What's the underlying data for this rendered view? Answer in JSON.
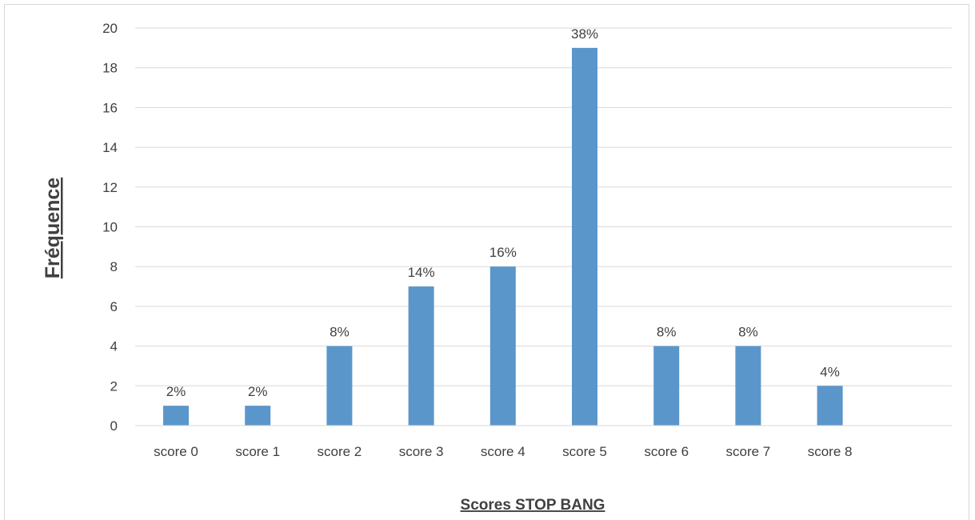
{
  "chart_data": {
    "type": "bar",
    "title": "",
    "xlabel": "Scores STOP BANG",
    "ylabel": "Fréquence",
    "categories": [
      "score 0",
      "score 1",
      "score 2",
      "score 3",
      "score 4",
      "score 5",
      "score 6",
      "score 7",
      "score 8"
    ],
    "values": [
      1,
      1,
      4,
      7,
      8,
      19,
      4,
      4,
      2
    ],
    "data_labels": [
      "2%",
      "2%",
      "8%",
      "14%",
      "16%",
      "38%",
      "8%",
      "8%",
      "4%"
    ],
    "ylim": [
      0,
      20
    ],
    "yticks": [
      0,
      2,
      4,
      6,
      8,
      10,
      12,
      14,
      16,
      18,
      20
    ],
    "grid": true,
    "legend": "none",
    "bar_color": "#5b96cb",
    "grid_color": "#d9d9d9",
    "text_color": "#404040"
  }
}
